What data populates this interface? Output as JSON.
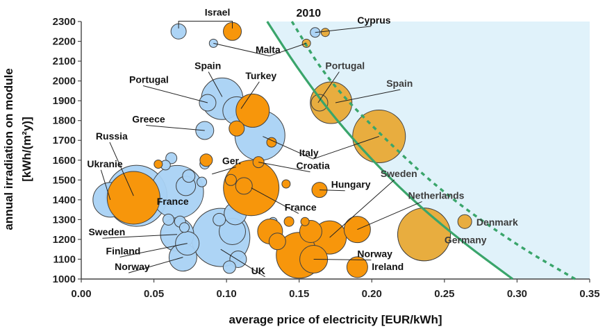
{
  "chart_data": {
    "type": "scatter",
    "subtype": "bubble",
    "xlabel": "average price of electricity [EUR/kWh]",
    "ylabel_lines": [
      "annual irradiation on module",
      "[kWh/(m²y)]"
    ],
    "xlim": [
      0.0,
      0.35
    ],
    "ylim": [
      1000,
      2300
    ],
    "x_ticks": [
      "0.00",
      "0.05",
      "0.10",
      "0.15",
      "0.20",
      "0.25",
      "0.30",
      "0.35"
    ],
    "y_ticks": [
      "1000",
      "1100",
      "1200",
      "1300",
      "1400",
      "1500",
      "1600",
      "1700",
      "1800",
      "1900",
      "2000",
      "2100",
      "2200",
      "2300"
    ],
    "grid": false,
    "colors": {
      "blue_fill": "#a9d2f4",
      "orange_fill": "#f7960b",
      "gold_fill": "#e8ad3f",
      "bubble_edge": "#404040",
      "region_fill": "#e0f2fa",
      "curve": "#3aa56b"
    },
    "shaded_region": "right of the 2010 curve",
    "annotation_year": "2010",
    "curves": [
      {
        "style": "solid",
        "points": [
          [
            0.128,
            2300
          ],
          [
            0.15,
            2050
          ],
          [
            0.18,
            1760
          ],
          [
            0.22,
            1450
          ],
          [
            0.26,
            1200
          ],
          [
            0.297,
            1000
          ]
        ]
      },
      {
        "style": "dotted",
        "points": [
          [
            0.145,
            2300
          ],
          [
            0.17,
            2000
          ],
          [
            0.21,
            1700
          ],
          [
            0.25,
            1430
          ],
          [
            0.3,
            1170
          ],
          [
            0.34,
            1000
          ]
        ]
      }
    ],
    "series": [
      {
        "name": "blue",
        "points": [
          {
            "x": 0.067,
            "y": 2250,
            "size": 11
          },
          {
            "x": 0.091,
            "y": 2190,
            "size": 6
          },
          {
            "x": 0.097,
            "y": 1910,
            "size": 30
          },
          {
            "x": 0.087,
            "y": 1890,
            "size": 12
          },
          {
            "x": 0.107,
            "y": 1850,
            "size": 20
          },
          {
            "x": 0.085,
            "y": 1750,
            "size": 13
          },
          {
            "x": 0.123,
            "y": 1725,
            "size": 36
          },
          {
            "x": 0.02,
            "y": 1400,
            "size": 25
          },
          {
            "x": 0.038,
            "y": 1420,
            "size": 44
          },
          {
            "x": 0.062,
            "y": 1610,
            "size": 8
          },
          {
            "x": 0.058,
            "y": 1575,
            "size": 7
          },
          {
            "x": 0.066,
            "y": 1440,
            "size": 38
          },
          {
            "x": 0.072,
            "y": 1470,
            "size": 14
          },
          {
            "x": 0.074,
            "y": 1520,
            "size": 9
          },
          {
            "x": 0.083,
            "y": 1490,
            "size": 7
          },
          {
            "x": 0.085,
            "y": 1580,
            "size": 7
          },
          {
            "x": 0.06,
            "y": 1300,
            "size": 8
          },
          {
            "x": 0.068,
            "y": 1290,
            "size": 8
          },
          {
            "x": 0.071,
            "y": 1260,
            "size": 7
          },
          {
            "x": 0.066,
            "y": 1225,
            "size": 24
          },
          {
            "x": 0.073,
            "y": 1180,
            "size": 17
          },
          {
            "x": 0.07,
            "y": 1110,
            "size": 20
          },
          {
            "x": 0.096,
            "y": 1210,
            "size": 42
          },
          {
            "x": 0.104,
            "y": 1240,
            "size": 19
          },
          {
            "x": 0.106,
            "y": 1330,
            "size": 16
          },
          {
            "x": 0.095,
            "y": 1300,
            "size": 9
          },
          {
            "x": 0.102,
            "y": 1060,
            "size": 9
          },
          {
            "x": 0.108,
            "y": 1100,
            "size": 12
          },
          {
            "x": 0.118,
            "y": 1450,
            "size": 9
          },
          {
            "x": 0.132,
            "y": 1290,
            "size": 6
          },
          {
            "x": 0.161,
            "y": 2245,
            "size": 7
          }
        ]
      },
      {
        "name": "orange",
        "points": [
          {
            "x": 0.104,
            "y": 2250,
            "size": 13
          },
          {
            "x": 0.118,
            "y": 1850,
            "size": 24
          },
          {
            "x": 0.107,
            "y": 1760,
            "size": 11
          },
          {
            "x": 0.036,
            "y": 1410,
            "size": 38
          },
          {
            "x": 0.086,
            "y": 1600,
            "size": 9
          },
          {
            "x": 0.053,
            "y": 1580,
            "size": 6
          },
          {
            "x": 0.103,
            "y": 1500,
            "size": 8
          },
          {
            "x": 0.117,
            "y": 1460,
            "size": 40
          },
          {
            "x": 0.112,
            "y": 1470,
            "size": 12
          },
          {
            "x": 0.122,
            "y": 1590,
            "size": 8
          },
          {
            "x": 0.131,
            "y": 1690,
            "size": 7
          },
          {
            "x": 0.141,
            "y": 1480,
            "size": 6
          },
          {
            "x": 0.164,
            "y": 1450,
            "size": 11
          },
          {
            "x": 0.13,
            "y": 1240,
            "size": 18
          },
          {
            "x": 0.135,
            "y": 1190,
            "size": 12
          },
          {
            "x": 0.143,
            "y": 1290,
            "size": 7
          },
          {
            "x": 0.154,
            "y": 1290,
            "size": 6
          },
          {
            "x": 0.158,
            "y": 1240,
            "size": 16
          },
          {
            "x": 0.15,
            "y": 1120,
            "size": 33
          },
          {
            "x": 0.171,
            "y": 1210,
            "size": 24
          },
          {
            "x": 0.16,
            "y": 1100,
            "size": 20
          },
          {
            "x": 0.19,
            "y": 1250,
            "size": 19
          },
          {
            "x": 0.19,
            "y": 1060,
            "size": 15
          },
          {
            "x": 0.236,
            "y": 1225,
            "size": 38
          }
        ]
      },
      {
        "name": "gold",
        "points": [
          {
            "x": 0.168,
            "y": 2245,
            "size": 6
          },
          {
            "x": 0.155,
            "y": 2190,
            "size": 6
          },
          {
            "x": 0.172,
            "y": 1890,
            "size": 30
          },
          {
            "x": 0.164,
            "y": 1890,
            "size": 12
          },
          {
            "x": 0.205,
            "y": 1720,
            "size": 38
          },
          {
            "x": 0.236,
            "y": 1225,
            "size": 38
          },
          {
            "x": 0.264,
            "y": 1290,
            "size": 10
          }
        ]
      }
    ],
    "labels": [
      {
        "text": "Israel",
        "x": 0.085,
        "y": 2330,
        "bracket_from": [
          0.067,
          2265
        ],
        "bracket_to": [
          0.104,
          2265
        ]
      },
      {
        "text": "2010",
        "x": 0.148,
        "y": 2325
      },
      {
        "text": "Cyprus",
        "x": 0.19,
        "y": 2290,
        "pointer": [
          0.161,
          2245
        ]
      },
      {
        "text": "Malta",
        "x": 0.12,
        "y": 2140,
        "pointer": [
          0.091,
          2190
        ],
        "pointer2": [
          0.155,
          2190
        ]
      },
      {
        "text": "Portugal",
        "x": 0.168,
        "y": 2060,
        "pointer": [
          0.163,
          1890
        ]
      },
      {
        "text": "Spain",
        "x": 0.21,
        "y": 1970,
        "pointer": [
          0.175,
          1890
        ]
      },
      {
        "text": "Spain",
        "x": 0.078,
        "y": 2060,
        "pointer": [
          0.097,
          1920
        ]
      },
      {
        "text": "Turkey",
        "x": 0.113,
        "y": 2010,
        "pointer": [
          0.11,
          1860
        ]
      },
      {
        "text": "Portugal",
        "x": 0.033,
        "y": 1990,
        "pointer": [
          0.087,
          1890
        ]
      },
      {
        "text": "Greece",
        "x": 0.035,
        "y": 1790,
        "pointer": [
          0.085,
          1750
        ]
      },
      {
        "text": "Russia",
        "x": 0.01,
        "y": 1705,
        "pointer": [
          0.036,
          1420
        ]
      },
      {
        "text": "Ukranie",
        "x": 0.004,
        "y": 1565,
        "pointer": [
          0.02,
          1400
        ]
      },
      {
        "text": "Ger.",
        "x": 0.097,
        "y": 1580,
        "pointer": [
          0.09,
          1530
        ]
      },
      {
        "text": "Italy",
        "x": 0.15,
        "y": 1620,
        "pointer": [
          0.125,
          1720
        ],
        "pointer2": [
          0.205,
          1720
        ]
      },
      {
        "text": "Croatia",
        "x": 0.148,
        "y": 1555,
        "pointer": [
          0.122,
          1590
        ]
      },
      {
        "text": "Hungary",
        "x": 0.172,
        "y": 1460,
        "pointer": [
          0.164,
          1450
        ]
      },
      {
        "text": "Sweden",
        "x": 0.206,
        "y": 1515,
        "pointer": [
          0.171,
          1210
        ]
      },
      {
        "text": "Netherlands",
        "x": 0.225,
        "y": 1405,
        "pointer": [
          0.19,
          1250
        ]
      },
      {
        "text": "Denmark",
        "x": 0.272,
        "y": 1270
      },
      {
        "text": "Germany",
        "x": 0.25,
        "y": 1180
      },
      {
        "text": "France",
        "x": 0.052,
        "y": 1375
      },
      {
        "text": "France",
        "x": 0.14,
        "y": 1345,
        "pointer": [
          0.117,
          1460
        ]
      },
      {
        "text": "Sweden",
        "x": 0.005,
        "y": 1220,
        "pointer": [
          0.066,
          1225
        ]
      },
      {
        "text": "Finland",
        "x": 0.017,
        "y": 1125,
        "pointer": [
          0.073,
          1180
        ]
      },
      {
        "text": "Norway",
        "x": 0.023,
        "y": 1045,
        "pointer": [
          0.07,
          1110
        ]
      },
      {
        "text": "UK",
        "x": 0.117,
        "y": 1025,
        "pointer": [
          0.096,
          1150
        ]
      },
      {
        "text": "Norway",
        "x": 0.19,
        "y": 1110,
        "pointer": [
          0.16,
          1100
        ]
      },
      {
        "text": "Ireland",
        "x": 0.2,
        "y": 1045
      }
    ]
  }
}
